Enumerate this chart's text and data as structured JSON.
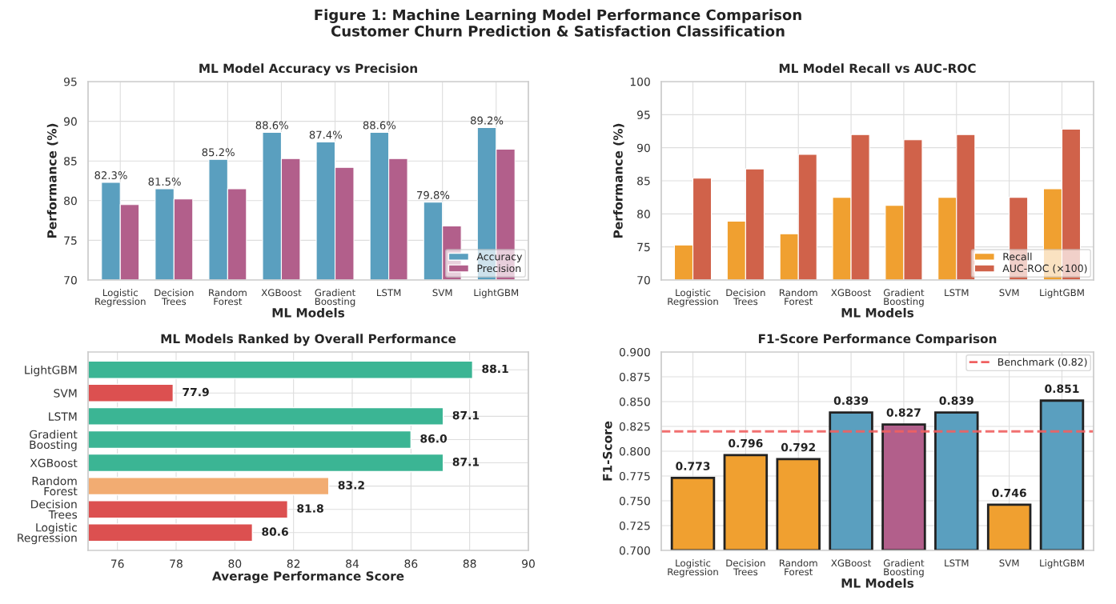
{
  "chart_data": [
    {
      "type": "bar",
      "title": "ML Model Accuracy vs Precision",
      "annotations": [
        "Figure 1: Machine Learning Model Performance Comparison\nCustomer Churn Prediction & Satisfaction Classification"
      ],
      "xlabel": "ML Models",
      "ylabel": "Performance (%)",
      "categories": [
        "Logistic\nRegression",
        "Decision\nTrees",
        "Random\nForest",
        "XGBoost",
        "Gradient\nBoosting",
        "LSTM",
        "SVM",
        "LightGBM"
      ],
      "series": [
        {
          "name": "Accuracy",
          "color": "#5a9fbf",
          "values": [
            82.3,
            81.5,
            85.2,
            88.6,
            87.4,
            88.6,
            79.8,
            89.2
          ],
          "value_labels": [
            "82.3%",
            "81.5%",
            "85.2%",
            "88.6%",
            "87.4%",
            "88.6%",
            "79.8%",
            "89.2%"
          ]
        },
        {
          "name": "Precision",
          "color": "#b25f8b",
          "values": [
            79.5,
            80.2,
            81.5,
            85.3,
            84.2,
            85.3,
            76.8,
            86.5
          ]
        }
      ],
      "ylim": [
        70,
        95
      ],
      "yticks": [
        70,
        75,
        80,
        85,
        90,
        95
      ],
      "grid": true,
      "legend": "bottom right"
    },
    {
      "type": "bar",
      "title": "ML Model Recall vs AUC-ROC",
      "xlabel": "ML Models",
      "ylabel": "Performance (%)",
      "categories": [
        "Logistic\nRegression",
        "Decision\nTrees",
        "Random\nForest",
        "XGBoost",
        "Gradient\nBoosting",
        "LSTM",
        "SVM",
        "LightGBM"
      ],
      "series": [
        {
          "name": "Recall",
          "color": "#f0a030",
          "values": [
            75.3,
            78.9,
            77.0,
            82.5,
            81.3,
            82.5,
            null,
            83.8
          ]
        },
        {
          "name": "AUC-ROC (×100)",
          "color": "#d0624a",
          "values": [
            85.4,
            86.8,
            89.0,
            92.0,
            91.2,
            92.0,
            82.5,
            92.8
          ]
        }
      ],
      "ylim": [
        70,
        100
      ],
      "yticks": [
        70,
        75,
        80,
        85,
        90,
        95,
        100
      ],
      "grid": true,
      "legend": "bottom right"
    },
    {
      "type": "bar",
      "orientation": "horizontal",
      "title": "ML Models Ranked by Overall Performance",
      "xlabel": "Average Performance Score",
      "categories": [
        "LightGBM",
        "SVM",
        "LSTM",
        "Gradient\nBoosting",
        "XGBoost",
        "Random\nForest",
        "Decision\nTrees",
        "Logistic\nRegression"
      ],
      "values": [
        88.1,
        77.9,
        87.1,
        86.0,
        87.1,
        83.2,
        81.8,
        80.6
      ],
      "value_labels": [
        "88.1",
        "77.9",
        "87.1",
        "86.0",
        "87.1",
        "83.2",
        "81.8",
        "80.6"
      ],
      "colors": [
        "#3bb594",
        "#dc5050",
        "#3bb594",
        "#3bb594",
        "#3bb594",
        "#f2ac72",
        "#dc5050",
        "#dc5050"
      ],
      "xlim": [
        75,
        90
      ],
      "xticks": [
        76,
        78,
        80,
        82,
        84,
        86,
        88,
        90
      ],
      "grid": true
    },
    {
      "type": "bar",
      "title": "F1-Score Performance Comparison",
      "xlabel": "ML Models",
      "ylabel": "F1-Score",
      "categories": [
        "Logistic\nRegression",
        "Decision\nTrees",
        "Random\nForest",
        "XGBoost",
        "Gradient\nBoosting",
        "LSTM",
        "SVM",
        "LightGBM"
      ],
      "values": [
        0.773,
        0.796,
        0.792,
        0.839,
        0.827,
        0.839,
        0.746,
        0.851
      ],
      "value_labels": [
        "0.773",
        "0.796",
        "0.792",
        "0.839",
        "0.827",
        "0.839",
        "0.746",
        "0.851"
      ],
      "colors": [
        "#f0a030",
        "#f0a030",
        "#f0a030",
        "#5a9fbf",
        "#b25f8b",
        "#5a9fbf",
        "#f0a030",
        "#5a9fbf"
      ],
      "ylim": [
        0.7,
        0.9
      ],
      "yticks": [
        {
          "value": 0.7,
          "label": "0.700"
        },
        {
          "value": 0.725,
          "label": "0.725"
        },
        {
          "value": 0.75,
          "label": "0.750"
        },
        {
          "value": 0.775,
          "label": "0.775"
        },
        {
          "value": 0.8,
          "label": "0.800"
        },
        {
          "value": 0.825,
          "label": "0.825"
        },
        {
          "value": 0.85,
          "label": "0.850"
        },
        {
          "value": 0.875,
          "label": "0.875"
        },
        {
          "value": 0.9,
          "label": "0.900"
        }
      ],
      "ref_lines": [
        {
          "axis": "y",
          "value": 0.82,
          "label": "Benchmark (0.82)",
          "color": "#f06060",
          "line_style": "dashed"
        }
      ],
      "grid": true,
      "legend": "top right"
    }
  ]
}
